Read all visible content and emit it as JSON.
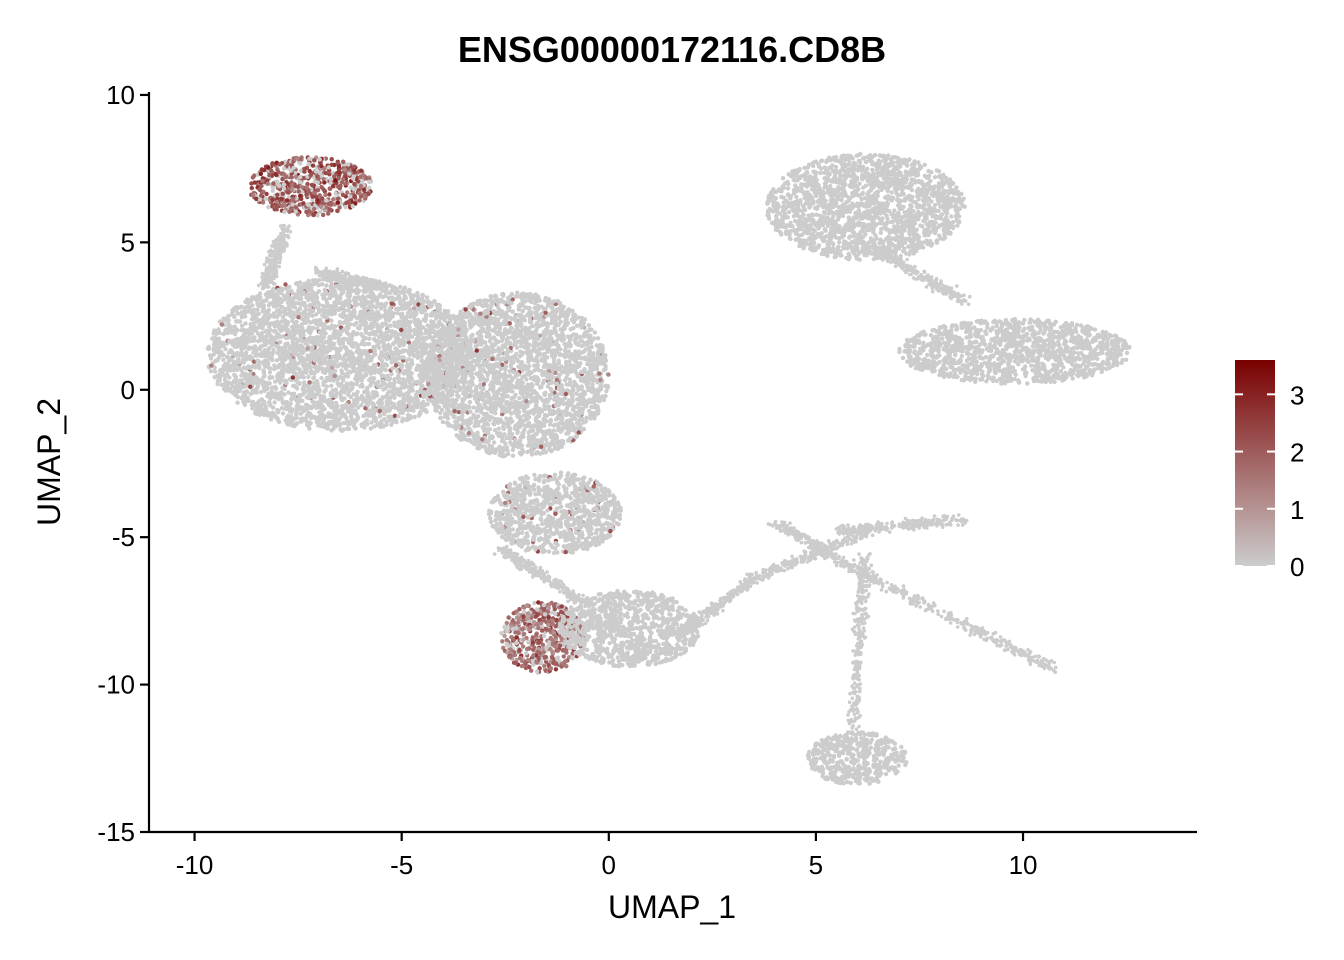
{
  "chart_data": {
    "type": "scatter",
    "title": "ENSG00000172116.CD8B",
    "xlabel": "UMAP_1",
    "ylabel": "UMAP_2",
    "xlim": [
      -11.1,
      14.2
    ],
    "ylim": [
      -15.0,
      10.1
    ],
    "x_ticks": [
      -10,
      -5,
      0,
      5,
      10
    ],
    "y_ticks": [
      -15,
      -10,
      -5,
      0,
      5,
      10
    ],
    "grid": false,
    "legend": {
      "type": "colorbar",
      "placement": "right",
      "ticks": [
        0,
        1,
        2,
        3
      ],
      "range": [
        0,
        3.6
      ],
      "color_low": "#cccccc",
      "color_high": "#7a0000"
    },
    "clusters": [
      {
        "label": "top-left arc",
        "center": [
          -7.2,
          6.9
        ],
        "rx": 1.5,
        "ry": 1.0,
        "expression": "high",
        "mean_value": 2.0
      },
      {
        "label": "left large blob",
        "center": [
          -6.5,
          1.2
        ],
        "rx": 3.2,
        "ry": 2.6,
        "expression": "sparse",
        "mean_value": 0.15
      },
      {
        "label": "middle lobe",
        "center": [
          -2.2,
          0.5
        ],
        "rx": 2.2,
        "ry": 2.8,
        "expression": "sparse",
        "mean_value": 0.15
      },
      {
        "label": "lower body",
        "center": [
          -1.3,
          -4.2
        ],
        "rx": 1.6,
        "ry": 1.4,
        "expression": "sparse",
        "mean_value": 0.1
      },
      {
        "label": "bottom-center blob (expressing part)",
        "center": [
          -1.6,
          -8.4
        ],
        "rx": 1.0,
        "ry": 1.2,
        "expression": "high",
        "mean_value": 1.7
      },
      {
        "label": "bottom-center blob",
        "center": [
          0.5,
          -8.1
        ],
        "rx": 1.7,
        "ry": 1.3,
        "expression": "none",
        "mean_value": 0
      },
      {
        "label": "top-right upper blob",
        "center": [
          6.2,
          6.2
        ],
        "rx": 2.4,
        "ry": 1.8,
        "expression": "none",
        "mean_value": 0
      },
      {
        "label": "top-right lower blob",
        "center": [
          9.8,
          1.3
        ],
        "rx": 2.8,
        "ry": 1.1,
        "expression": "none",
        "mean_value": 0
      },
      {
        "label": "bottom-right small blob",
        "center": [
          6.0,
          -12.5
        ],
        "rx": 1.2,
        "ry": 0.9,
        "expression": "none",
        "mean_value": 0
      }
    ]
  }
}
